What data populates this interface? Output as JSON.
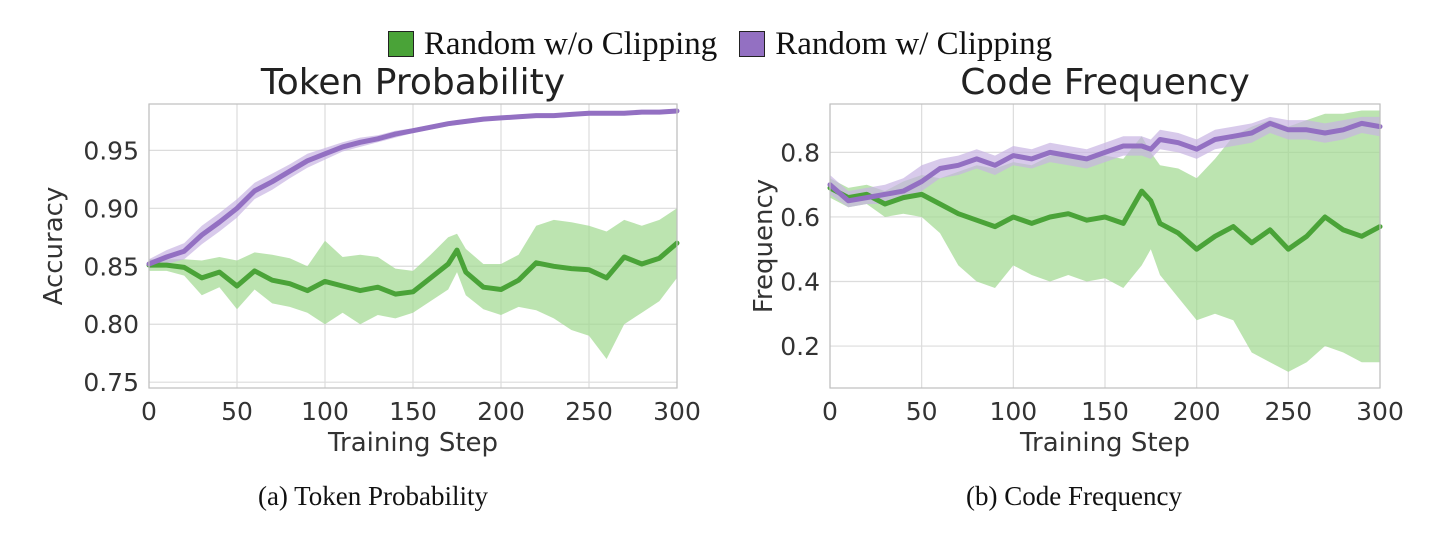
{
  "legend": {
    "series_a": "Random w/o Clipping",
    "series_b": "Random w/ Clipping"
  },
  "colors": {
    "green": "#4aa338",
    "green_band": "#9fd98f",
    "purple": "#9370c2",
    "purple_band": "#c8b4e3"
  },
  "captions": {
    "a": "(a) Token Probability",
    "b": "(b) Code Frequency"
  },
  "chart_data": [
    {
      "type": "line",
      "title": "Token Probability",
      "xlabel": "Training Step",
      "ylabel": "Accuracy",
      "xlim": [
        0,
        300
      ],
      "ylim": [
        0.745,
        0.99
      ],
      "xticks": [
        0,
        50,
        100,
        150,
        200,
        250,
        300
      ],
      "yticks": [
        0.75,
        0.8,
        0.85,
        0.9,
        0.95
      ],
      "ytick_labels": [
        "0.75",
        "0.80",
        "0.85",
        "0.90",
        "0.95"
      ],
      "grid": true,
      "x": [
        0,
        10,
        20,
        30,
        40,
        50,
        60,
        70,
        80,
        90,
        100,
        110,
        120,
        130,
        140,
        150,
        160,
        170,
        175,
        180,
        190,
        200,
        210,
        220,
        230,
        240,
        250,
        260,
        270,
        280,
        290,
        300
      ],
      "series": [
        {
          "name": "Random w/o Clipping",
          "color": "green",
          "values": [
            0.851,
            0.851,
            0.849,
            0.84,
            0.845,
            0.833,
            0.846,
            0.838,
            0.835,
            0.829,
            0.837,
            0.833,
            0.829,
            0.832,
            0.826,
            0.828,
            0.84,
            0.852,
            0.864,
            0.845,
            0.832,
            0.83,
            0.838,
            0.853,
            0.85,
            0.848,
            0.847,
            0.84,
            0.858,
            0.852,
            0.857,
            0.87
          ],
          "lower": [
            0.846,
            0.846,
            0.842,
            0.825,
            0.832,
            0.813,
            0.83,
            0.818,
            0.815,
            0.81,
            0.8,
            0.81,
            0.8,
            0.808,
            0.805,
            0.81,
            0.82,
            0.83,
            0.845,
            0.825,
            0.813,
            0.808,
            0.815,
            0.812,
            0.805,
            0.795,
            0.79,
            0.77,
            0.8,
            0.81,
            0.82,
            0.84
          ],
          "upper": [
            0.856,
            0.856,
            0.856,
            0.855,
            0.858,
            0.855,
            0.862,
            0.86,
            0.857,
            0.85,
            0.872,
            0.858,
            0.86,
            0.858,
            0.848,
            0.846,
            0.86,
            0.875,
            0.878,
            0.865,
            0.852,
            0.852,
            0.86,
            0.885,
            0.89,
            0.888,
            0.885,
            0.88,
            0.89,
            0.885,
            0.89,
            0.9
          ]
        },
        {
          "name": "Random w/ Clipping",
          "color": "purple",
          "values": [
            0.852,
            0.858,
            0.863,
            0.877,
            0.888,
            0.9,
            0.915,
            0.923,
            0.932,
            0.941,
            0.947,
            0.953,
            0.957,
            0.96,
            0.964,
            0.967,
            0.97,
            0.973,
            0.974,
            0.975,
            0.977,
            0.978,
            0.979,
            0.98,
            0.98,
            0.981,
            0.982,
            0.982,
            0.982,
            0.983,
            0.983,
            0.984
          ],
          "lower": [
            0.848,
            0.852,
            0.856,
            0.869,
            0.88,
            0.892,
            0.908,
            0.916,
            0.926,
            0.935,
            0.942,
            0.949,
            0.953,
            0.957,
            0.961,
            0.965,
            0.968,
            0.971,
            0.972,
            0.973,
            0.976,
            0.977,
            0.978,
            0.979,
            0.979,
            0.98,
            0.981,
            0.981,
            0.981,
            0.982,
            0.982,
            0.983
          ],
          "upper": [
            0.856,
            0.864,
            0.87,
            0.885,
            0.896,
            0.908,
            0.922,
            0.93,
            0.938,
            0.947,
            0.952,
            0.957,
            0.961,
            0.963,
            0.967,
            0.969,
            0.972,
            0.975,
            0.976,
            0.977,
            0.978,
            0.979,
            0.98,
            0.981,
            0.981,
            0.982,
            0.983,
            0.983,
            0.983,
            0.984,
            0.984,
            0.985
          ]
        }
      ]
    },
    {
      "type": "line",
      "title": "Code Frequency",
      "xlabel": "Training Step",
      "ylabel": "Frequency",
      "xlim": [
        0,
        300
      ],
      "ylim": [
        0.07,
        0.95
      ],
      "xticks": [
        0,
        50,
        100,
        150,
        200,
        250,
        300
      ],
      "yticks": [
        0.2,
        0.4,
        0.6,
        0.8
      ],
      "ytick_labels": [
        "0.2",
        "0.4",
        "0.6",
        "0.8"
      ],
      "grid": true,
      "x": [
        0,
        10,
        20,
        30,
        40,
        50,
        60,
        70,
        80,
        90,
        100,
        110,
        120,
        130,
        140,
        150,
        160,
        170,
        175,
        180,
        190,
        200,
        210,
        220,
        230,
        240,
        250,
        260,
        270,
        280,
        290,
        300
      ],
      "series": [
        {
          "name": "Random w/o Clipping",
          "color": "green",
          "values": [
            0.69,
            0.66,
            0.67,
            0.64,
            0.66,
            0.67,
            0.64,
            0.61,
            0.59,
            0.57,
            0.6,
            0.58,
            0.6,
            0.61,
            0.59,
            0.6,
            0.58,
            0.68,
            0.65,
            0.58,
            0.55,
            0.5,
            0.54,
            0.57,
            0.52,
            0.56,
            0.5,
            0.54,
            0.6,
            0.56,
            0.54,
            0.57
          ],
          "lower": [
            0.66,
            0.63,
            0.64,
            0.6,
            0.61,
            0.6,
            0.55,
            0.45,
            0.4,
            0.38,
            0.45,
            0.42,
            0.4,
            0.42,
            0.4,
            0.41,
            0.38,
            0.45,
            0.5,
            0.42,
            0.35,
            0.28,
            0.3,
            0.28,
            0.18,
            0.15,
            0.12,
            0.15,
            0.2,
            0.18,
            0.15,
            0.15
          ],
          "upper": [
            0.72,
            0.69,
            0.7,
            0.68,
            0.71,
            0.73,
            0.72,
            0.74,
            0.76,
            0.75,
            0.77,
            0.76,
            0.79,
            0.79,
            0.78,
            0.79,
            0.78,
            0.85,
            0.8,
            0.76,
            0.75,
            0.72,
            0.78,
            0.85,
            0.88,
            0.9,
            0.88,
            0.9,
            0.92,
            0.92,
            0.93,
            0.93
          ]
        },
        {
          "name": "Random w/ Clipping",
          "color": "purple",
          "values": [
            0.7,
            0.65,
            0.66,
            0.67,
            0.68,
            0.71,
            0.75,
            0.76,
            0.78,
            0.76,
            0.79,
            0.78,
            0.8,
            0.79,
            0.78,
            0.8,
            0.82,
            0.82,
            0.81,
            0.84,
            0.83,
            0.81,
            0.84,
            0.85,
            0.86,
            0.89,
            0.87,
            0.87,
            0.86,
            0.87,
            0.89,
            0.88
          ],
          "lower": [
            0.67,
            0.63,
            0.64,
            0.64,
            0.65,
            0.68,
            0.72,
            0.73,
            0.75,
            0.73,
            0.76,
            0.75,
            0.77,
            0.76,
            0.75,
            0.77,
            0.79,
            0.79,
            0.78,
            0.81,
            0.8,
            0.78,
            0.81,
            0.82,
            0.83,
            0.86,
            0.84,
            0.84,
            0.83,
            0.84,
            0.86,
            0.85
          ],
          "upper": [
            0.73,
            0.68,
            0.69,
            0.7,
            0.72,
            0.76,
            0.78,
            0.79,
            0.81,
            0.79,
            0.82,
            0.81,
            0.83,
            0.82,
            0.81,
            0.83,
            0.85,
            0.85,
            0.84,
            0.87,
            0.86,
            0.84,
            0.87,
            0.88,
            0.89,
            0.91,
            0.9,
            0.9,
            0.89,
            0.9,
            0.91,
            0.91
          ]
        }
      ]
    }
  ]
}
